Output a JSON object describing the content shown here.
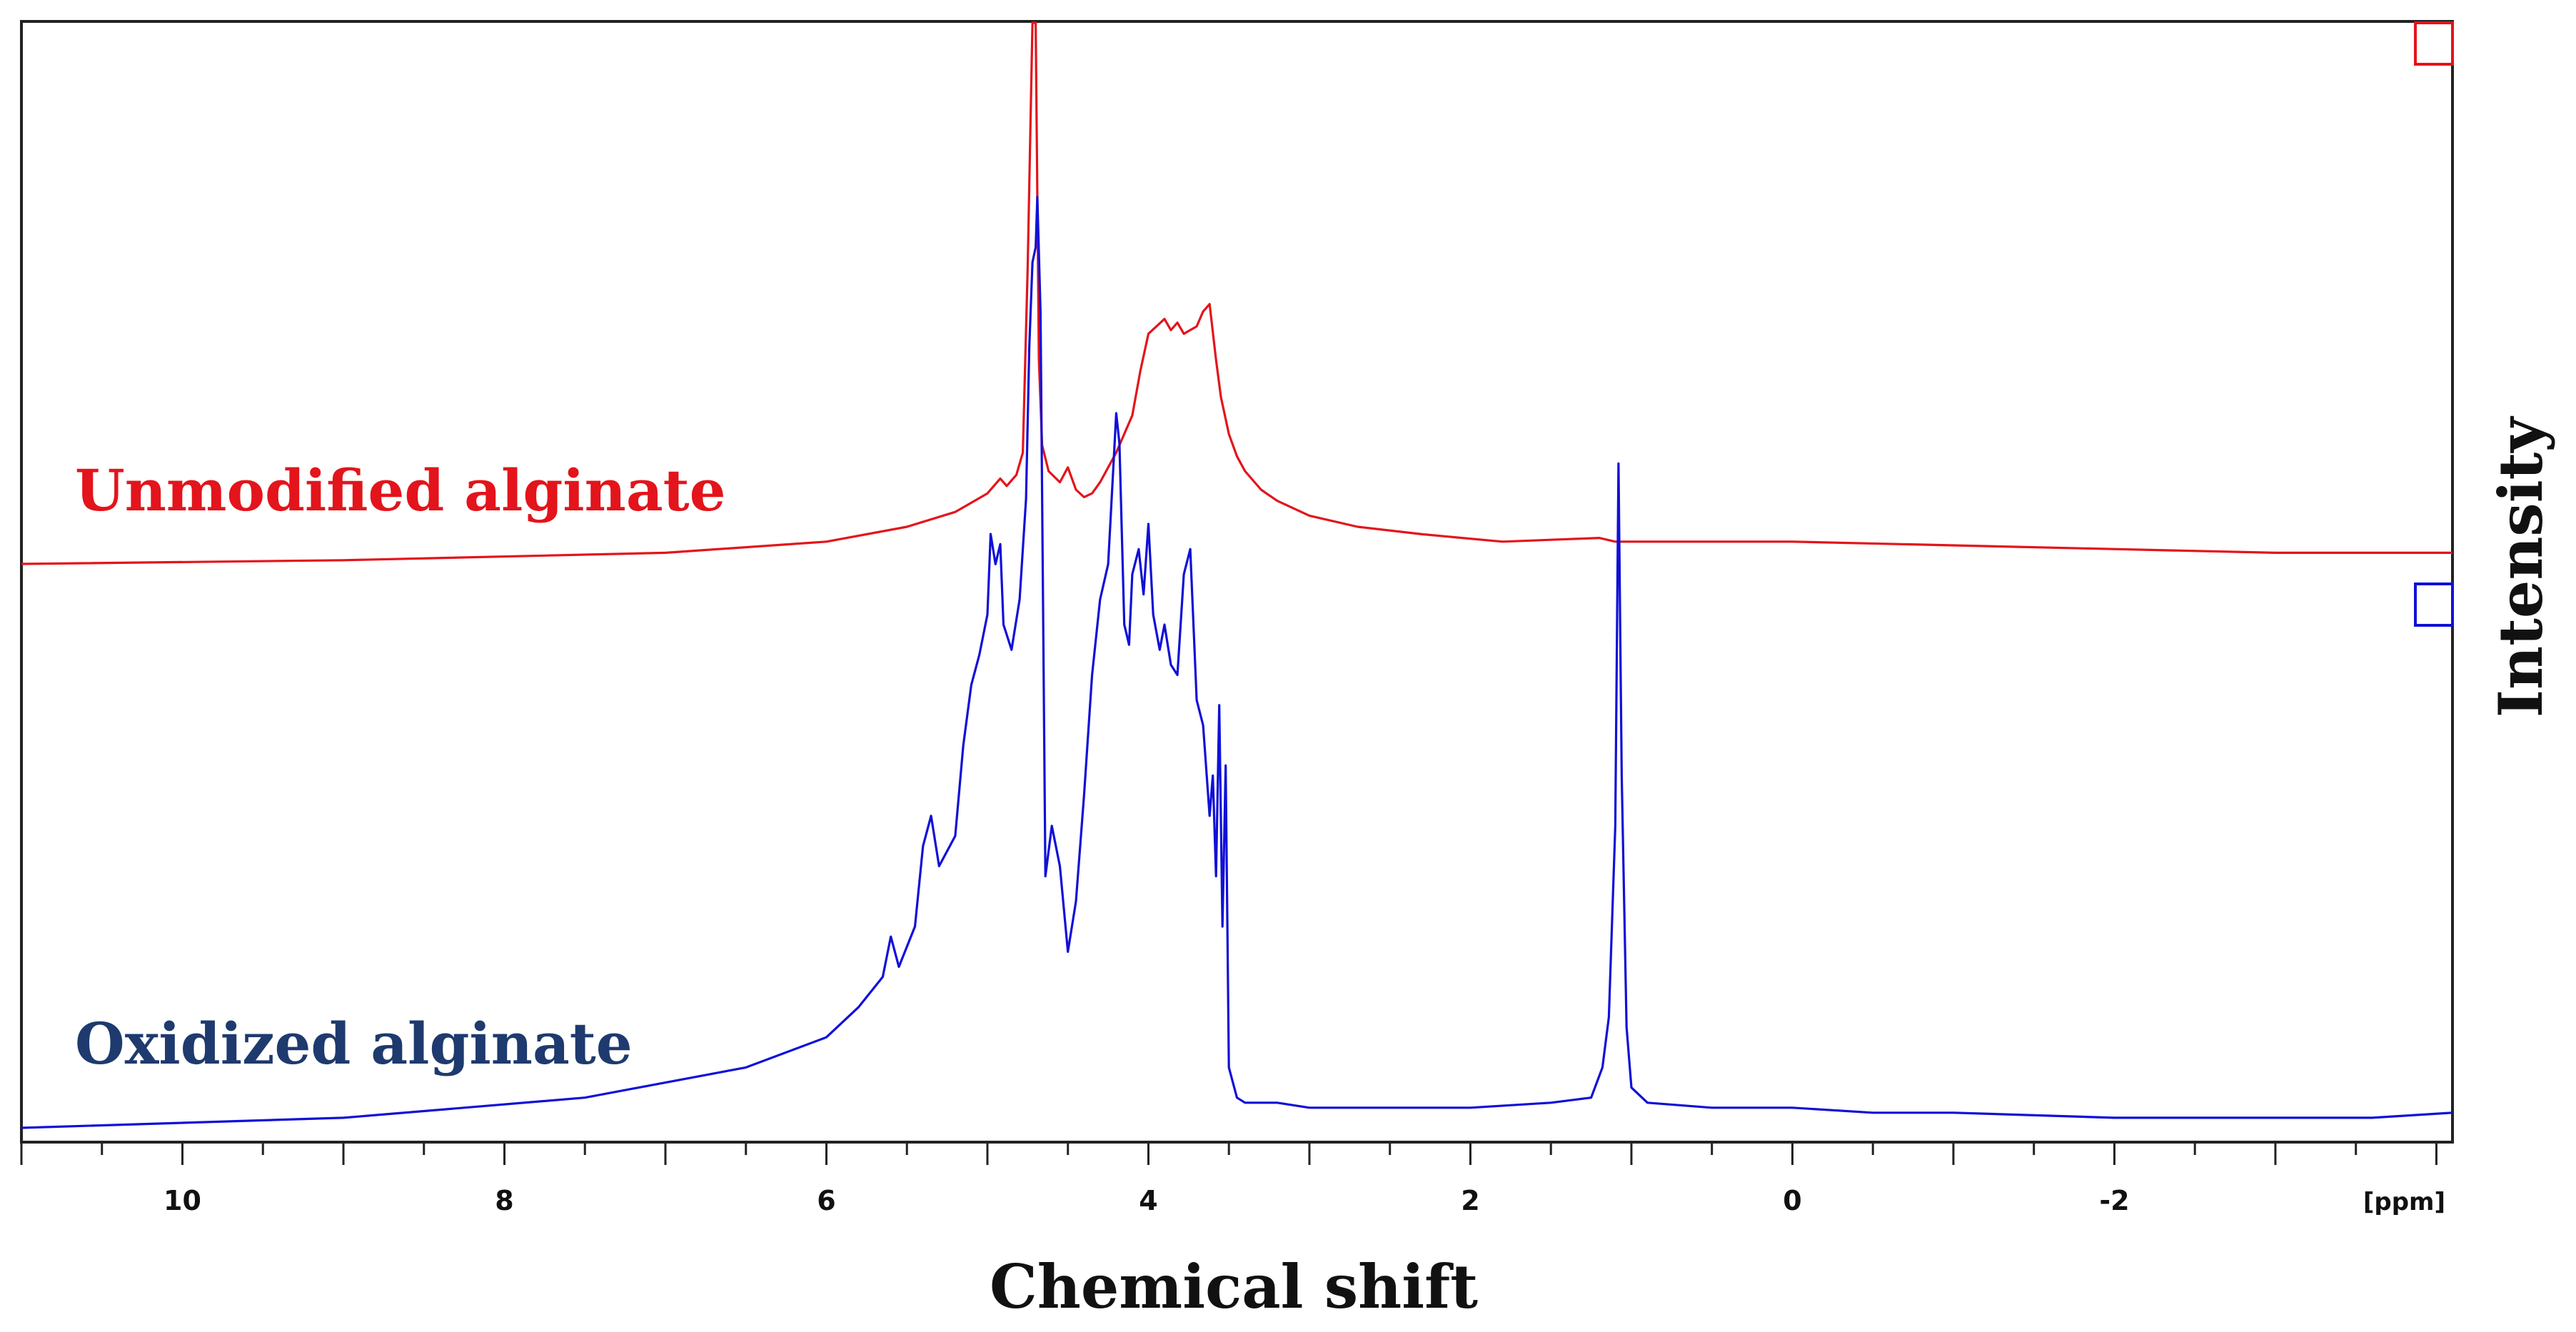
{
  "chart_data": {
    "type": "line",
    "xlabel": "Chemical shift",
    "ylabel": "Intensity",
    "x_unit_label": "[ppm]",
    "xlim": [
      11.0,
      -4.1
    ],
    "x_reversed": true,
    "x_ticks": [
      10,
      8,
      6,
      4,
      2,
      0,
      -2
    ],
    "x_tick_labels": [
      "10",
      "8",
      "6",
      "4",
      "2",
      "0",
      "-2"
    ],
    "grid": false,
    "legend": "inline labels",
    "series": [
      {
        "name": "Unmodified alginate",
        "color": "#e3141b",
        "baseline_note": "upper trace, offset",
        "x": [
          11.0,
          9.0,
          7.0,
          6.0,
          5.5,
          5.2,
          5.0,
          4.92,
          4.88,
          4.82,
          4.78,
          4.75,
          4.72,
          4.7,
          4.68,
          4.66,
          4.62,
          4.55,
          4.5,
          4.45,
          4.4,
          4.35,
          4.3,
          4.2,
          4.1,
          4.05,
          4.0,
          3.95,
          3.9,
          3.86,
          3.82,
          3.78,
          3.74,
          3.7,
          3.66,
          3.62,
          3.58,
          3.55,
          3.5,
          3.45,
          3.4,
          3.3,
          3.2,
          3.0,
          2.7,
          2.3,
          1.8,
          1.2,
          1.1,
          1.0,
          0.5,
          0.0,
          -1.0,
          -2.0,
          -3.0,
          -4.1
        ],
        "y": [
          0.0,
          0.01,
          0.03,
          0.06,
          0.1,
          0.14,
          0.19,
          0.23,
          0.21,
          0.24,
          0.3,
          0.8,
          1.5,
          1.5,
          0.55,
          0.32,
          0.25,
          0.22,
          0.26,
          0.2,
          0.18,
          0.19,
          0.22,
          0.3,
          0.4,
          0.52,
          0.62,
          0.64,
          0.66,
          0.63,
          0.65,
          0.62,
          0.63,
          0.64,
          0.68,
          0.7,
          0.55,
          0.45,
          0.35,
          0.29,
          0.25,
          0.2,
          0.17,
          0.13,
          0.1,
          0.08,
          0.06,
          0.07,
          0.06,
          0.06,
          0.06,
          0.06,
          0.05,
          0.04,
          0.03,
          0.03
        ]
      },
      {
        "name": "Oxidized alginate",
        "color": "#1010d8",
        "baseline_note": "lower trace",
        "x": [
          11.0,
          9.0,
          7.5,
          6.5,
          6.0,
          5.8,
          5.65,
          5.6,
          5.55,
          5.45,
          5.4,
          5.35,
          5.3,
          5.2,
          5.15,
          5.1,
          5.05,
          5.0,
          4.98,
          4.95,
          4.92,
          4.9,
          4.85,
          4.8,
          4.76,
          4.74,
          4.72,
          4.7,
          4.69,
          4.67,
          4.64,
          4.6,
          4.55,
          4.5,
          4.45,
          4.4,
          4.35,
          4.3,
          4.25,
          4.22,
          4.2,
          4.18,
          4.15,
          4.12,
          4.1,
          4.06,
          4.03,
          4.0,
          3.97,
          3.93,
          3.9,
          3.86,
          3.82,
          3.78,
          3.74,
          3.7,
          3.66,
          3.62,
          3.6,
          3.58,
          3.56,
          3.54,
          3.52,
          3.5,
          3.45,
          3.4,
          3.2,
          3.0,
          2.5,
          2.0,
          1.5,
          1.25,
          1.18,
          1.14,
          1.1,
          1.08,
          1.06,
          1.03,
          1.0,
          0.9,
          0.5,
          0.0,
          -0.5,
          -1.0,
          -2.0,
          -3.0,
          -3.6,
          -4.1
        ],
        "y": [
          0.0,
          0.02,
          0.06,
          0.12,
          0.18,
          0.24,
          0.3,
          0.38,
          0.32,
          0.4,
          0.56,
          0.62,
          0.52,
          0.58,
          0.76,
          0.88,
          0.94,
          1.02,
          1.18,
          1.12,
          1.16,
          1.0,
          0.95,
          1.05,
          1.25,
          1.55,
          1.72,
          1.75,
          1.85,
          1.62,
          0.5,
          0.6,
          0.52,
          0.35,
          0.45,
          0.66,
          0.9,
          1.05,
          1.12,
          1.3,
          1.42,
          1.36,
          1.0,
          0.96,
          1.1,
          1.15,
          1.06,
          1.2,
          1.02,
          0.95,
          1.0,
          0.92,
          0.9,
          1.1,
          1.15,
          0.85,
          0.8,
          0.62,
          0.7,
          0.5,
          0.84,
          0.4,
          0.72,
          0.12,
          0.06,
          0.05,
          0.05,
          0.04,
          0.04,
          0.04,
          0.05,
          0.06,
          0.12,
          0.22,
          0.6,
          1.32,
          0.7,
          0.2,
          0.08,
          0.05,
          0.04,
          0.04,
          0.03,
          0.03,
          0.02,
          0.02,
          0.02,
          0.03
        ]
      }
    ]
  },
  "colors": {
    "frame": "#222222",
    "unmodified": "#e3141b",
    "oxidized_trace": "#1010d8",
    "oxidized_label": "#1e3a6e"
  }
}
